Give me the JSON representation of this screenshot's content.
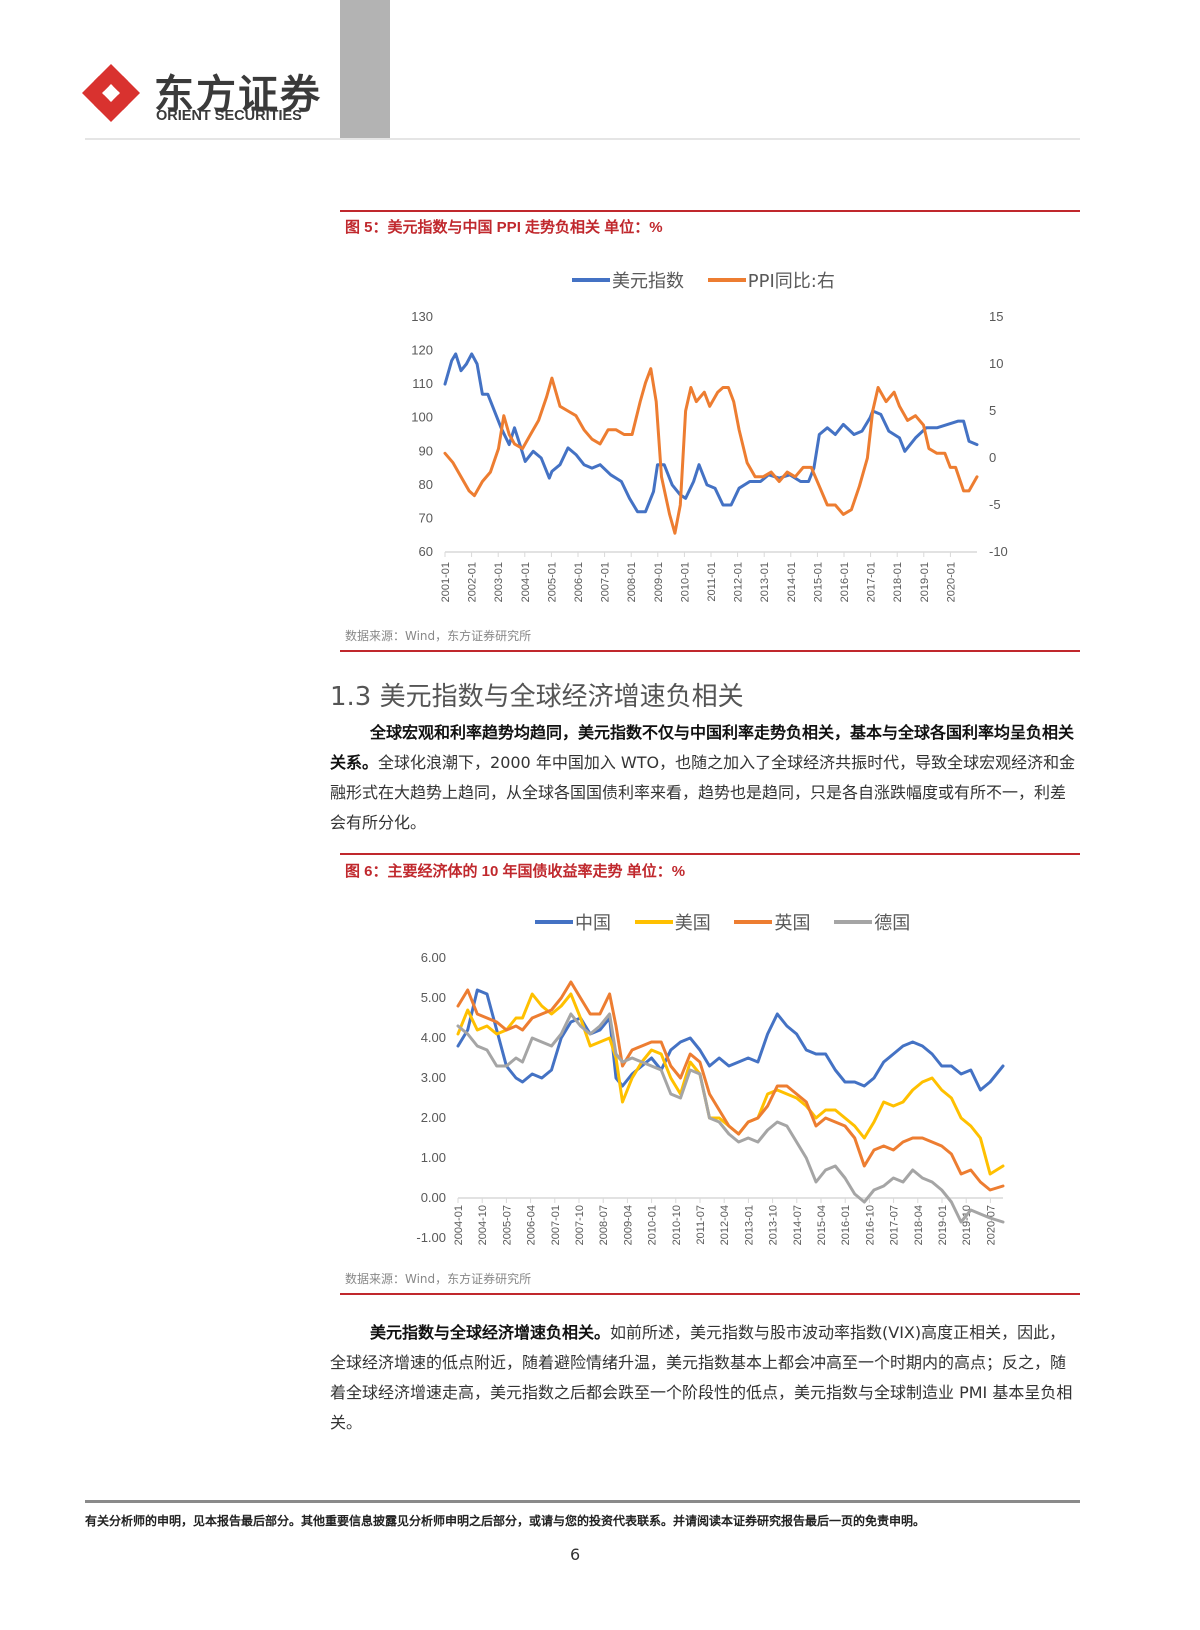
{
  "header": {
    "logo_cn": "东方证券",
    "logo_en": "ORIENT SECURITIES"
  },
  "figure5": {
    "title": "图 5：美元指数与中国 PPI 走势负相关  单位：%",
    "source": "数据来源：Wind，东方证券研究所"
  },
  "section": {
    "title": "1.3 美元指数与全球经济增速负相关",
    "para1_bold": "全球宏观和利率趋势均趋同，美元指数不仅与中国利率走势负相关，基本与全球各国利率均呈负相关关系。",
    "para1_text": "全球化浪潮下，2000 年中国加入 WTO，也随之加入了全球经济共振时代，导致全球宏观经济和金融形式在大趋势上趋同，从全球各国国债利率来看，趋势也是趋同，只是各自涨跌幅度或有所不一，利差会有所分化。"
  },
  "figure6": {
    "title": "图 6：主要经济体的 10 年国债收益率走势  单位：%",
    "source": "数据来源：Wind，东方证券研究所"
  },
  "para2": {
    "bold": "美元指数与全球经济增速负相关。",
    "text": "如前所述，美元指数与股市波动率指数(VIX)高度正相关，因此，全球经济增速的低点附近，随着避险情绪升温，美元指数基本上都会冲高至一个时期内的高点；反之，随着全球经济增速走高，美元指数之后都会跌至一个阶段性的低点，美元指数与全球制造业 PMI 基本呈负相关。"
  },
  "footer": {
    "disclaimer": "有关分析师的申明，见本报告最后部分。其他重要信息披露见分析师申明之后部分，或请与您的投资代表联系。并请阅读本证券研究报告最后一页的免责申明。",
    "page_number": "6"
  },
  "colors": {
    "brand_red": "#c0282d",
    "blue": "#4472c4",
    "orange": "#ed7d31",
    "yellow": "#ffc000",
    "grey": "#a5a5a5"
  },
  "chart_data": [
    {
      "type": "line",
      "title": "美元指数与中国 PPI 走势负相关 单位：%",
      "xlabel": "",
      "ylabel": "",
      "legend_position": "top",
      "grid": false,
      "categories": [
        "2001-01",
        "2002-01",
        "2003-01",
        "2004-01",
        "2005-01",
        "2006-01",
        "2007-01",
        "2008-01",
        "2009-01",
        "2010-01",
        "2011-01",
        "2012-01",
        "2013-01",
        "2014-01",
        "2015-01",
        "2016-01",
        "2017-01",
        "2018-01",
        "2019-01",
        "2020-01"
      ],
      "x_start": 2001.0,
      "x_end": 2020.9,
      "y_left": {
        "min": 60,
        "max": 130,
        "ticks": [
          60,
          70,
          80,
          90,
          100,
          110,
          120,
          130
        ]
      },
      "y_right": {
        "min": -10,
        "max": 15,
        "ticks": [
          -10,
          -5,
          0,
          5,
          10,
          15
        ]
      },
      "series": [
        {
          "name": "美元指数",
          "axis": "left",
          "color": "#4472c4",
          "x": [
            2001.0,
            2001.25,
            2001.4,
            2001.6,
            2001.8,
            2002.0,
            2002.2,
            2002.4,
            2002.6,
            2002.9,
            2003.1,
            2003.4,
            2003.6,
            2003.8,
            2004.0,
            2004.3,
            2004.6,
            2004.9,
            2005.0,
            2005.3,
            2005.6,
            2005.9,
            2006.2,
            2006.5,
            2006.8,
            2007.2,
            2007.6,
            2007.9,
            2008.2,
            2008.5,
            2008.8,
            2008.95,
            2009.2,
            2009.5,
            2009.8,
            2010.0,
            2010.3,
            2010.5,
            2010.8,
            2011.1,
            2011.4,
            2011.7,
            2012.0,
            2012.4,
            2012.8,
            2013.1,
            2013.5,
            2013.9,
            2014.3,
            2014.6,
            2014.8,
            2015.0,
            2015.3,
            2015.6,
            2015.9,
            2016.3,
            2016.6,
            2016.9,
            2017.0,
            2017.3,
            2017.6,
            2018.0,
            2018.2,
            2018.6,
            2019.0,
            2019.4,
            2019.8,
            2020.2,
            2020.4,
            2020.6,
            2020.9
          ],
          "values": [
            110,
            117,
            119,
            114,
            116,
            119,
            116,
            107,
            107,
            101,
            97,
            92,
            97,
            92,
            87,
            90,
            88,
            82,
            84,
            86,
            91,
            89,
            86,
            85,
            86,
            83,
            81,
            76,
            72,
            72,
            78,
            86,
            86,
            80,
            77,
            76,
            81,
            86,
            80,
            79,
            74,
            74,
            79,
            81,
            81,
            83,
            82,
            83,
            81,
            81,
            85,
            95,
            97,
            95,
            98,
            95,
            96,
            100,
            102,
            101,
            96,
            94,
            90,
            94,
            97,
            97,
            98,
            99,
            99,
            93,
            92
          ]
        },
        {
          "name": "PPI同比:右",
          "axis": "right",
          "color": "#ed7d31",
          "x": [
            2001.0,
            2001.3,
            2001.6,
            2001.9,
            2002.1,
            2002.4,
            2002.7,
            2003.0,
            2003.2,
            2003.4,
            2003.6,
            2003.9,
            2004.2,
            2004.5,
            2004.8,
            2005.0,
            2005.3,
            2005.6,
            2005.9,
            2006.2,
            2006.5,
            2006.8,
            2007.1,
            2007.4,
            2007.7,
            2008.0,
            2008.3,
            2008.5,
            2008.7,
            2008.9,
            2009.1,
            2009.4,
            2009.6,
            2009.8,
            2010.0,
            2010.2,
            2010.4,
            2010.7,
            2010.9,
            2011.2,
            2011.4,
            2011.6,
            2011.8,
            2012.0,
            2012.3,
            2012.6,
            2012.9,
            2013.2,
            2013.5,
            2013.8,
            2014.1,
            2014.4,
            2014.7,
            2015.0,
            2015.3,
            2015.6,
            2015.9,
            2016.2,
            2016.5,
            2016.8,
            2017.0,
            2017.2,
            2017.5,
            2017.8,
            2018.0,
            2018.3,
            2018.6,
            2018.9,
            2019.1,
            2019.4,
            2019.7,
            2019.9,
            2020.1,
            2020.4,
            2020.6,
            2020.9
          ],
          "values": [
            0.5,
            -0.5,
            -2,
            -3.5,
            -4,
            -2.5,
            -1.5,
            1,
            4.5,
            2.5,
            1.5,
            1,
            2.5,
            4,
            6.5,
            8.5,
            5.5,
            5,
            4.5,
            3,
            2,
            1.5,
            3,
            3,
            2.5,
            2.5,
            6,
            8,
            9.5,
            6,
            -2,
            -6,
            -8,
            -5,
            5,
            7.5,
            6,
            7,
            5.5,
            7,
            7.5,
            7.5,
            6,
            3,
            -0.5,
            -2,
            -2,
            -1.5,
            -2.5,
            -1.5,
            -2,
            -1,
            -1,
            -3,
            -5,
            -5,
            -6,
            -5.5,
            -3,
            0,
            5,
            7.5,
            6,
            7,
            5.5,
            4,
            4.5,
            3.5,
            1,
            0.5,
            0.5,
            -1,
            -1,
            -3.5,
            -3.5,
            -2
          ]
        }
      ]
    },
    {
      "type": "line",
      "title": "主要经济体的 10 年国债收益率走势 单位：%",
      "xlabel": "",
      "ylabel": "",
      "legend_position": "top",
      "grid": false,
      "categories": [
        "2004-01",
        "2004-10",
        "2005-07",
        "2006-04",
        "2007-01",
        "2007-10",
        "2008-07",
        "2009-04",
        "2010-01",
        "2010-10",
        "2011-07",
        "2012-04",
        "2013-01",
        "2013-10",
        "2014-07",
        "2015-04",
        "2016-01",
        "2016-10",
        "2017-07",
        "2018-04",
        "2019-01",
        "2019-10",
        "2020-07"
      ],
      "x_start": 2004.0,
      "x_end": 2020.9,
      "ylim": [
        -1,
        6
      ],
      "y_ticks": [
        "-1.00",
        "0.00",
        "1.00",
        "2.00",
        "3.00",
        "4.00",
        "5.00",
        "6.00"
      ],
      "series": [
        {
          "name": "中国",
          "color": "#4472c4",
          "x": [
            2004.0,
            2004.3,
            2004.6,
            2004.9,
            2005.2,
            2005.5,
            2005.8,
            2006.0,
            2006.3,
            2006.6,
            2006.9,
            2007.2,
            2007.5,
            2007.8,
            2008.1,
            2008.4,
            2008.7,
            2008.9,
            2009.1,
            2009.4,
            2009.7,
            2010.0,
            2010.3,
            2010.6,
            2010.9,
            2011.2,
            2011.5,
            2011.8,
            2012.1,
            2012.4,
            2012.7,
            2013.0,
            2013.3,
            2013.6,
            2013.9,
            2014.2,
            2014.5,
            2014.8,
            2015.1,
            2015.4,
            2015.7,
            2016.0,
            2016.3,
            2016.6,
            2016.9,
            2017.2,
            2017.5,
            2017.8,
            2018.1,
            2018.4,
            2018.7,
            2019.0,
            2019.3,
            2019.6,
            2019.9,
            2020.2,
            2020.5,
            2020.9
          ],
          "values": [
            3.8,
            4.2,
            5.2,
            5.1,
            4.2,
            3.3,
            3.0,
            2.9,
            3.1,
            3.0,
            3.2,
            4.0,
            4.4,
            4.5,
            4.1,
            4.2,
            4.5,
            3.0,
            2.8,
            3.1,
            3.3,
            3.5,
            3.2,
            3.7,
            3.9,
            4.0,
            3.7,
            3.3,
            3.5,
            3.3,
            3.4,
            3.5,
            3.4,
            4.1,
            4.6,
            4.3,
            4.1,
            3.7,
            3.6,
            3.6,
            3.2,
            2.9,
            2.9,
            2.8,
            3.0,
            3.4,
            3.6,
            3.8,
            3.9,
            3.8,
            3.6,
            3.3,
            3.3,
            3.1,
            3.2,
            2.7,
            2.9,
            3.3
          ]
        },
        {
          "name": "美国",
          "color": "#ffc000",
          "x": [
            2004.0,
            2004.3,
            2004.6,
            2004.9,
            2005.2,
            2005.5,
            2005.8,
            2006.0,
            2006.3,
            2006.6,
            2006.9,
            2007.2,
            2007.5,
            2007.8,
            2008.1,
            2008.4,
            2008.7,
            2008.9,
            2009.1,
            2009.4,
            2009.7,
            2010.0,
            2010.3,
            2010.6,
            2010.9,
            2011.2,
            2011.5,
            2011.8,
            2012.1,
            2012.4,
            2012.7,
            2013.0,
            2013.3,
            2013.6,
            2013.9,
            2014.2,
            2014.5,
            2014.8,
            2015.1,
            2015.4,
            2015.7,
            2016.0,
            2016.3,
            2016.6,
            2016.9,
            2017.2,
            2017.5,
            2017.8,
            2018.1,
            2018.4,
            2018.7,
            2019.0,
            2019.3,
            2019.6,
            2019.9,
            2020.2,
            2020.5,
            2020.9
          ],
          "values": [
            4.1,
            4.7,
            4.2,
            4.3,
            4.1,
            4.2,
            4.5,
            4.5,
            5.1,
            4.8,
            4.6,
            4.8,
            5.1,
            4.5,
            3.8,
            3.9,
            4.0,
            3.5,
            2.4,
            3.0,
            3.4,
            3.7,
            3.6,
            3.0,
            2.6,
            3.4,
            3.1,
            2.0,
            2.0,
            1.8,
            1.6,
            1.9,
            2.0,
            2.6,
            2.7,
            2.6,
            2.5,
            2.3,
            2.0,
            2.2,
            2.2,
            2.0,
            1.8,
            1.5,
            1.9,
            2.4,
            2.3,
            2.4,
            2.7,
            2.9,
            3.0,
            2.7,
            2.5,
            2.0,
            1.8,
            1.5,
            0.6,
            0.8
          ]
        },
        {
          "name": "英国",
          "color": "#ed7d31",
          "x": [
            2004.0,
            2004.3,
            2004.6,
            2004.9,
            2005.2,
            2005.5,
            2005.8,
            2006.0,
            2006.3,
            2006.6,
            2006.9,
            2007.2,
            2007.5,
            2007.8,
            2008.1,
            2008.4,
            2008.7,
            2008.9,
            2009.1,
            2009.4,
            2009.7,
            2010.0,
            2010.3,
            2010.6,
            2010.9,
            2011.2,
            2011.5,
            2011.8,
            2012.1,
            2012.4,
            2012.7,
            2013.0,
            2013.3,
            2013.6,
            2013.9,
            2014.2,
            2014.5,
            2014.8,
            2015.1,
            2015.4,
            2015.7,
            2016.0,
            2016.3,
            2016.6,
            2016.9,
            2017.2,
            2017.5,
            2017.8,
            2018.1,
            2018.4,
            2018.7,
            2019.0,
            2019.3,
            2019.6,
            2019.9,
            2020.2,
            2020.5,
            2020.9
          ],
          "values": [
            4.8,
            5.2,
            4.6,
            4.5,
            4.4,
            4.2,
            4.3,
            4.2,
            4.5,
            4.6,
            4.7,
            5.0,
            5.4,
            5.0,
            4.6,
            4.6,
            5.1,
            4.3,
            3.3,
            3.7,
            3.8,
            3.9,
            3.9,
            3.3,
            3.0,
            3.6,
            3.4,
            2.6,
            2.2,
            1.8,
            1.6,
            1.9,
            2.0,
            2.3,
            2.8,
            2.8,
            2.6,
            2.4,
            1.8,
            2.0,
            1.9,
            1.8,
            1.5,
            0.8,
            1.2,
            1.3,
            1.2,
            1.4,
            1.5,
            1.5,
            1.4,
            1.3,
            1.1,
            0.6,
            0.7,
            0.4,
            0.2,
            0.3
          ]
        },
        {
          "name": "德国",
          "color": "#a5a5a5",
          "x": [
            2004.0,
            2004.3,
            2004.6,
            2004.9,
            2005.2,
            2005.5,
            2005.8,
            2006.0,
            2006.3,
            2006.6,
            2006.9,
            2007.2,
            2007.5,
            2007.8,
            2008.1,
            2008.4,
            2008.7,
            2008.9,
            2009.1,
            2009.4,
            2009.7,
            2010.0,
            2010.3,
            2010.6,
            2010.9,
            2011.2,
            2011.5,
            2011.8,
            2012.1,
            2012.4,
            2012.7,
            2013.0,
            2013.3,
            2013.6,
            2013.9,
            2014.2,
            2014.5,
            2014.8,
            2015.1,
            2015.4,
            2015.7,
            2016.0,
            2016.3,
            2016.6,
            2016.9,
            2017.2,
            2017.5,
            2017.8,
            2018.1,
            2018.4,
            2018.7,
            2019.0,
            2019.3,
            2019.6,
            2019.9,
            2020.2,
            2020.5,
            2020.9
          ],
          "values": [
            4.3,
            4.1,
            3.8,
            3.7,
            3.3,
            3.3,
            3.5,
            3.4,
            4.0,
            3.9,
            3.8,
            4.1,
            4.6,
            4.3,
            4.1,
            4.3,
            4.6,
            3.6,
            3.4,
            3.5,
            3.4,
            3.3,
            3.2,
            2.6,
            2.5,
            3.2,
            3.1,
            2.0,
            1.9,
            1.6,
            1.4,
            1.5,
            1.4,
            1.7,
            1.9,
            1.8,
            1.4,
            1.0,
            0.4,
            0.7,
            0.8,
            0.5,
            0.1,
            -0.1,
            0.2,
            0.3,
            0.5,
            0.4,
            0.7,
            0.5,
            0.4,
            0.2,
            -0.1,
            -0.6,
            -0.3,
            -0.4,
            -0.5,
            -0.6
          ]
        }
      ]
    }
  ]
}
